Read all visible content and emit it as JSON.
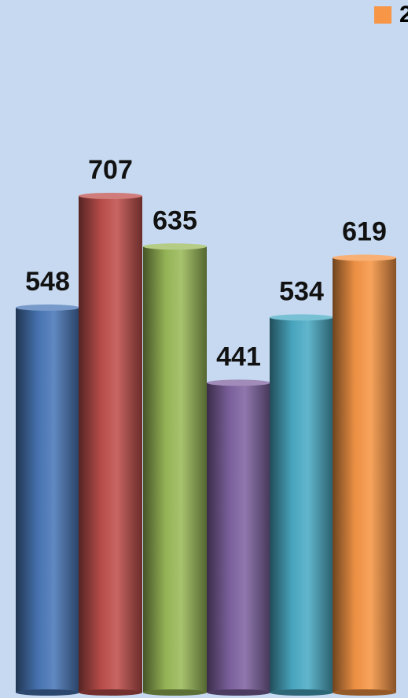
{
  "chart_data": {
    "type": "bar",
    "categories": [
      "",
      "",
      "",
      "",
      "",
      ""
    ],
    "values": [
      548,
      707,
      635,
      441,
      534,
      619
    ],
    "colors": [
      "#4a78b8",
      "#c0504d",
      "#9bbb59",
      "#8064a2",
      "#4bacc6",
      "#f79646"
    ],
    "data_labels": [
      "548",
      "707",
      "635",
      "441",
      "534",
      "619"
    ],
    "legend": {
      "marker_color": "#f79646",
      "text": "2",
      "placement": "top-right"
    },
    "grid": false,
    "style": "3d-cylinder"
  }
}
